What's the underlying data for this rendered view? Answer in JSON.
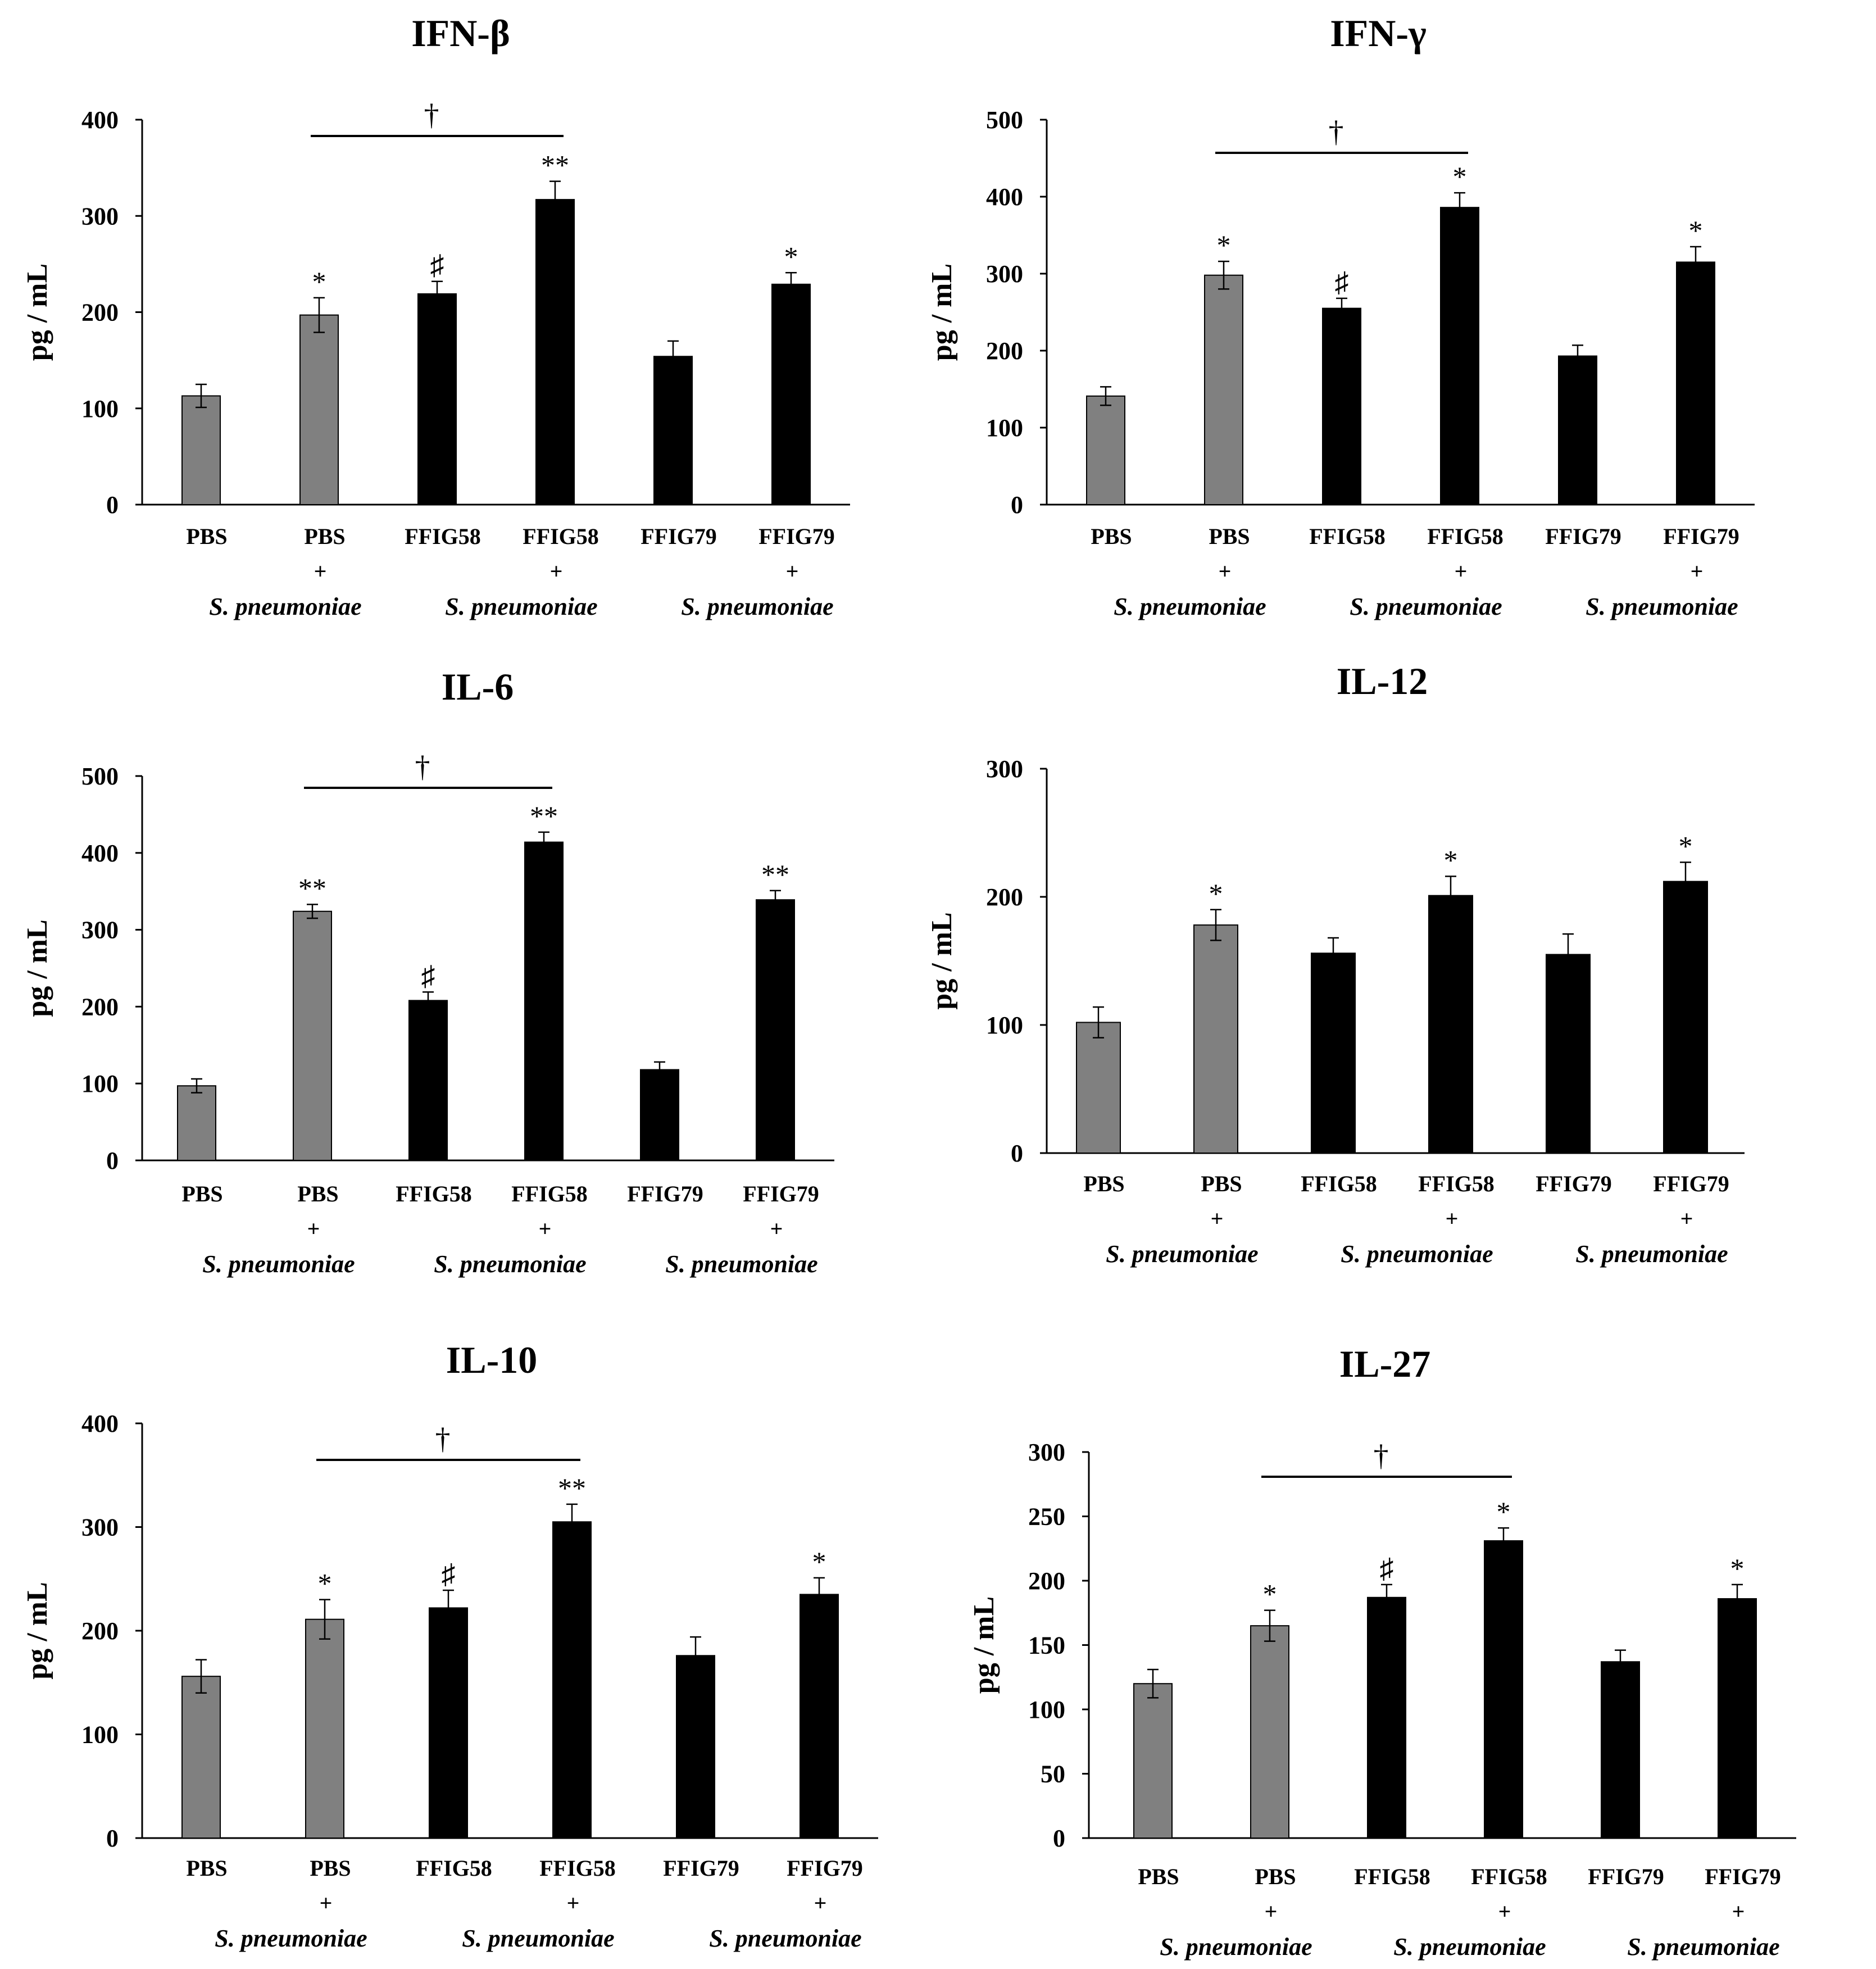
{
  "figure": {
    "categories": [
      "PBS",
      "PBS",
      "FFIG58",
      "FFIG58",
      "FFIG79",
      "FFIG79"
    ],
    "infected": [
      false,
      true,
      false,
      true,
      false,
      true
    ],
    "infection_plus": "+",
    "infection_label": "S. pneumoniae",
    "bar_colors": [
      "#808080",
      "#808080",
      "#000000",
      "#000000",
      "#000000",
      "#000000"
    ],
    "bracket_symbol": "†"
  },
  "chart_data": [
    {
      "type": "bar",
      "title": "IFN-β",
      "ylabel": "pg / mL",
      "xlabel": "",
      "ylim": [
        0,
        400
      ],
      "yticks": [
        0,
        100,
        200,
        300,
        400
      ],
      "categories": [
        "PBS",
        "PBS + S. pneumoniae",
        "FFIG58",
        "FFIG58 + S. pneumoniae",
        "FFIG79",
        "FFIG79 + S. pneumoniae"
      ],
      "values": [
        113,
        197,
        219,
        317,
        154,
        229
      ],
      "errors": [
        12,
        18,
        13,
        19,
        16,
        12
      ],
      "annotations": [
        "",
        "*",
        "♯",
        "**",
        "",
        "*"
      ],
      "bracket": {
        "from": 1,
        "to": 3,
        "label": "†"
      }
    },
    {
      "type": "bar",
      "title": "IFN-γ",
      "ylabel": "pg / mL",
      "xlabel": "",
      "ylim": [
        0,
        500
      ],
      "yticks": [
        0,
        100,
        200,
        300,
        400,
        500
      ],
      "categories": [
        "PBS",
        "PBS + S. pneumoniae",
        "FFIG58",
        "FFIG58 + S. pneumoniae",
        "FFIG79",
        "FFIG79 + S. pneumoniae"
      ],
      "values": [
        141,
        298,
        255,
        386,
        193,
        315
      ],
      "errors": [
        12,
        18,
        13,
        19,
        14,
        20
      ],
      "annotations": [
        "",
        "*",
        "♯",
        "*",
        "",
        "*"
      ],
      "bracket": {
        "from": 1,
        "to": 3,
        "label": "†"
      }
    },
    {
      "type": "bar",
      "title": "IL-6",
      "ylabel": "pg / mL",
      "xlabel": "",
      "ylim": [
        0,
        500
      ],
      "yticks": [
        0,
        100,
        200,
        300,
        400,
        500
      ],
      "categories": [
        "PBS",
        "PBS + S. pneumoniae",
        "FFIG58",
        "FFIG58 + S. pneumoniae",
        "FFIG79",
        "FFIG79 + S. pneumoniae"
      ],
      "values": [
        97,
        324,
        208,
        414,
        118,
        339
      ],
      "errors": [
        9,
        9,
        11,
        13,
        10,
        12
      ],
      "annotations": [
        "",
        "**",
        "♯",
        "**",
        "",
        "**"
      ],
      "bracket": {
        "from": 1,
        "to": 3,
        "label": "†"
      }
    },
    {
      "type": "bar",
      "title": "IL-12",
      "ylabel": "pg / mL",
      "xlabel": "",
      "ylim": [
        0,
        300
      ],
      "yticks": [
        0,
        100,
        200,
        300
      ],
      "categories": [
        "PBS",
        "PBS + S. pneumoniae",
        "FFIG58",
        "FFIG58 + S. pneumoniae",
        "FFIG79",
        "FFIG79 + S. pneumoniae"
      ],
      "values": [
        102,
        178,
        156,
        201,
        155,
        212
      ],
      "errors": [
        12,
        12,
        12,
        15,
        16,
        15
      ],
      "annotations": [
        "",
        "*",
        "",
        "*",
        "",
        "*"
      ],
      "bracket": null
    },
    {
      "type": "bar",
      "title": "IL-10",
      "ylabel": "pg / mL",
      "xlabel": "",
      "ylim": [
        0,
        400
      ],
      "yticks": [
        0,
        100,
        200,
        300,
        400
      ],
      "categories": [
        "PBS",
        "PBS + S. pneumoniae",
        "FFIG58",
        "FFIG58 + S. pneumoniae",
        "FFIG79",
        "FFIG79 + S. pneumoniae"
      ],
      "values": [
        156,
        211,
        222,
        305,
        176,
        235
      ],
      "errors": [
        16,
        19,
        17,
        17,
        18,
        16
      ],
      "annotations": [
        "",
        "*",
        "♯",
        "**",
        "",
        "*"
      ],
      "bracket": {
        "from": 1,
        "to": 3,
        "label": "†"
      }
    },
    {
      "type": "bar",
      "title": "IL-27",
      "ylabel": "pg / mL",
      "xlabel": "",
      "ylim": [
        0,
        300
      ],
      "yticks": [
        0,
        50,
        100,
        150,
        200,
        250,
        300
      ],
      "categories": [
        "PBS",
        "PBS + S. pneumoniae",
        "FFIG58",
        "FFIG58 + S. pneumoniae",
        "FFIG79",
        "FFIG79 + S. pneumoniae"
      ],
      "values": [
        120,
        165,
        187,
        231,
        137,
        186
      ],
      "errors": [
        11,
        12,
        10,
        10,
        9,
        11
      ],
      "annotations": [
        "",
        "*",
        "♯",
        "*",
        "",
        "*"
      ],
      "bracket": {
        "from": 1,
        "to": 3,
        "label": "†"
      }
    }
  ]
}
